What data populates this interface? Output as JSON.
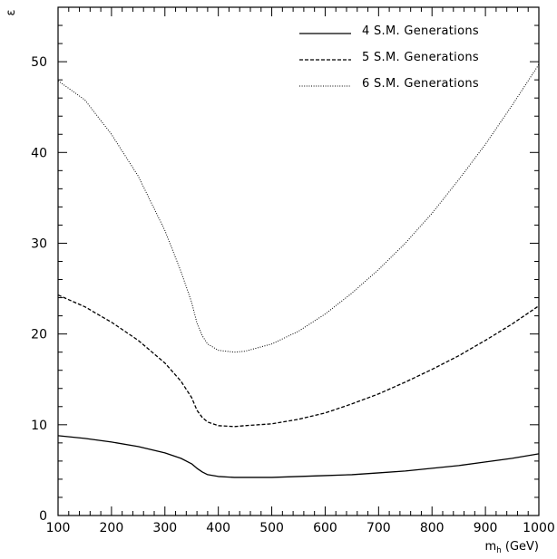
{
  "chart_data": {
    "type": "line",
    "title": "",
    "xlabel": "m_h (GeV)",
    "xlabel_main": "m",
    "xlabel_sub": "h",
    "xlabel_unit": "(GeV)",
    "ylabel": "ε",
    "xlim": [
      100,
      1000
    ],
    "ylim": [
      0,
      56
    ],
    "xticks": [
      100,
      200,
      300,
      400,
      500,
      600,
      700,
      800,
      900,
      1000
    ],
    "yticks": [
      0,
      10,
      20,
      30,
      40,
      50
    ],
    "grid": false,
    "legend_position": "top-right",
    "x": [
      100,
      150,
      200,
      250,
      300,
      330,
      350,
      360,
      370,
      380,
      400,
      430,
      450,
      500,
      550,
      600,
      650,
      700,
      750,
      800,
      850,
      900,
      950,
      1000
    ],
    "series": [
      {
        "name": "4 S.M. Generations",
        "line_style": "solid",
        "values": [
          8.8,
          8.5,
          8.1,
          7.6,
          6.9,
          6.3,
          5.7,
          5.2,
          4.8,
          4.5,
          4.3,
          4.2,
          4.2,
          4.2,
          4.3,
          4.4,
          4.5,
          4.7,
          4.9,
          5.2,
          5.5,
          5.9,
          6.3,
          6.8
        ]
      },
      {
        "name": "5 S.M. Generations",
        "line_style": "dashed",
        "values": [
          24.3,
          23.0,
          21.3,
          19.3,
          16.8,
          14.8,
          13.0,
          11.6,
          10.8,
          10.3,
          9.9,
          9.8,
          9.9,
          10.1,
          10.6,
          11.3,
          12.3,
          13.4,
          14.7,
          16.1,
          17.6,
          19.3,
          21.1,
          23.1
        ]
      },
      {
        "name": "6 S.M. Generations",
        "line_style": "dotted",
        "values": [
          47.9,
          45.8,
          42.0,
          37.4,
          31.4,
          26.9,
          23.5,
          21.2,
          19.8,
          18.9,
          18.2,
          18.0,
          18.1,
          18.9,
          20.3,
          22.2,
          24.5,
          27.1,
          30.0,
          33.3,
          37.0,
          40.9,
          45.2,
          49.7
        ]
      }
    ]
  }
}
